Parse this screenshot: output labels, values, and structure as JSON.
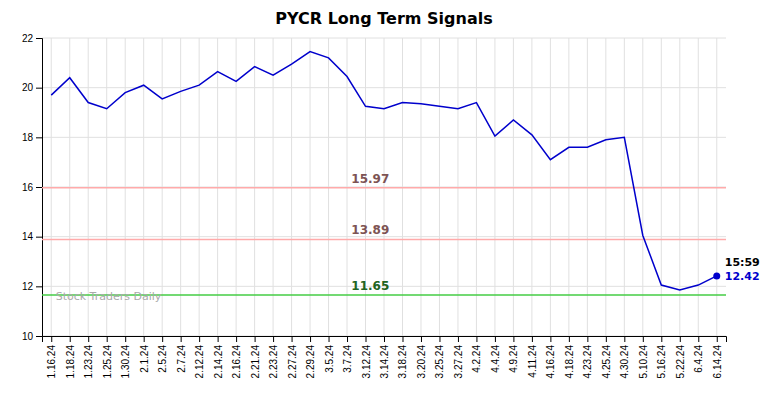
{
  "chart_data": {
    "type": "line",
    "title": "PYCR Long Term Signals",
    "categories": [
      "1.16.24",
      "1.18.24",
      "1.23.24",
      "1.25.24",
      "1.30.24",
      "2.1.24",
      "2.5.24",
      "2.7.24",
      "2.12.24",
      "2.14.24",
      "2.16.24",
      "2.21.24",
      "2.23.24",
      "2.27.24",
      "2.29.24",
      "3.5.24",
      "3.7.24",
      "3.12.24",
      "3.14.24",
      "3.18.24",
      "3.20.24",
      "3.25.24",
      "3.27.24",
      "4.2.24",
      "4.4.24",
      "4.9.24",
      "4.11.24",
      "4.16.24",
      "4.18.24",
      "4.23.24",
      "4.25.24",
      "4.30.24",
      "5.10.24",
      "5.16.24",
      "5.22.24",
      "6.4.24",
      "6.14.24"
    ],
    "values": [
      19.7,
      20.4,
      19.4,
      19.15,
      19.8,
      20.1,
      19.55,
      19.85,
      20.1,
      20.65,
      20.25,
      20.85,
      20.5,
      20.95,
      21.45,
      21.2,
      20.45,
      19.25,
      19.15,
      19.4,
      19.35,
      19.25,
      19.15,
      19.4,
      18.05,
      18.7,
      18.1,
      17.1,
      17.6,
      17.6,
      17.9,
      18.0,
      14.05,
      12.05,
      11.85,
      12.05,
      12.42
    ],
    "color": "#0000cc",
    "hlines": [
      {
        "y": 15.97,
        "color": "#ffaaaa"
      },
      {
        "y": 13.89,
        "color": "#ffaaaa"
      },
      {
        "y": 11.65,
        "color": "#44cc44"
      }
    ],
    "annotations": [
      "15:59"
    ],
    "watermark": "Stock Traders Daily",
    "ylim": [
      10,
      22
    ],
    "yticks": [
      10,
      12,
      14,
      16,
      18,
      20,
      22
    ],
    "grid": true
  }
}
